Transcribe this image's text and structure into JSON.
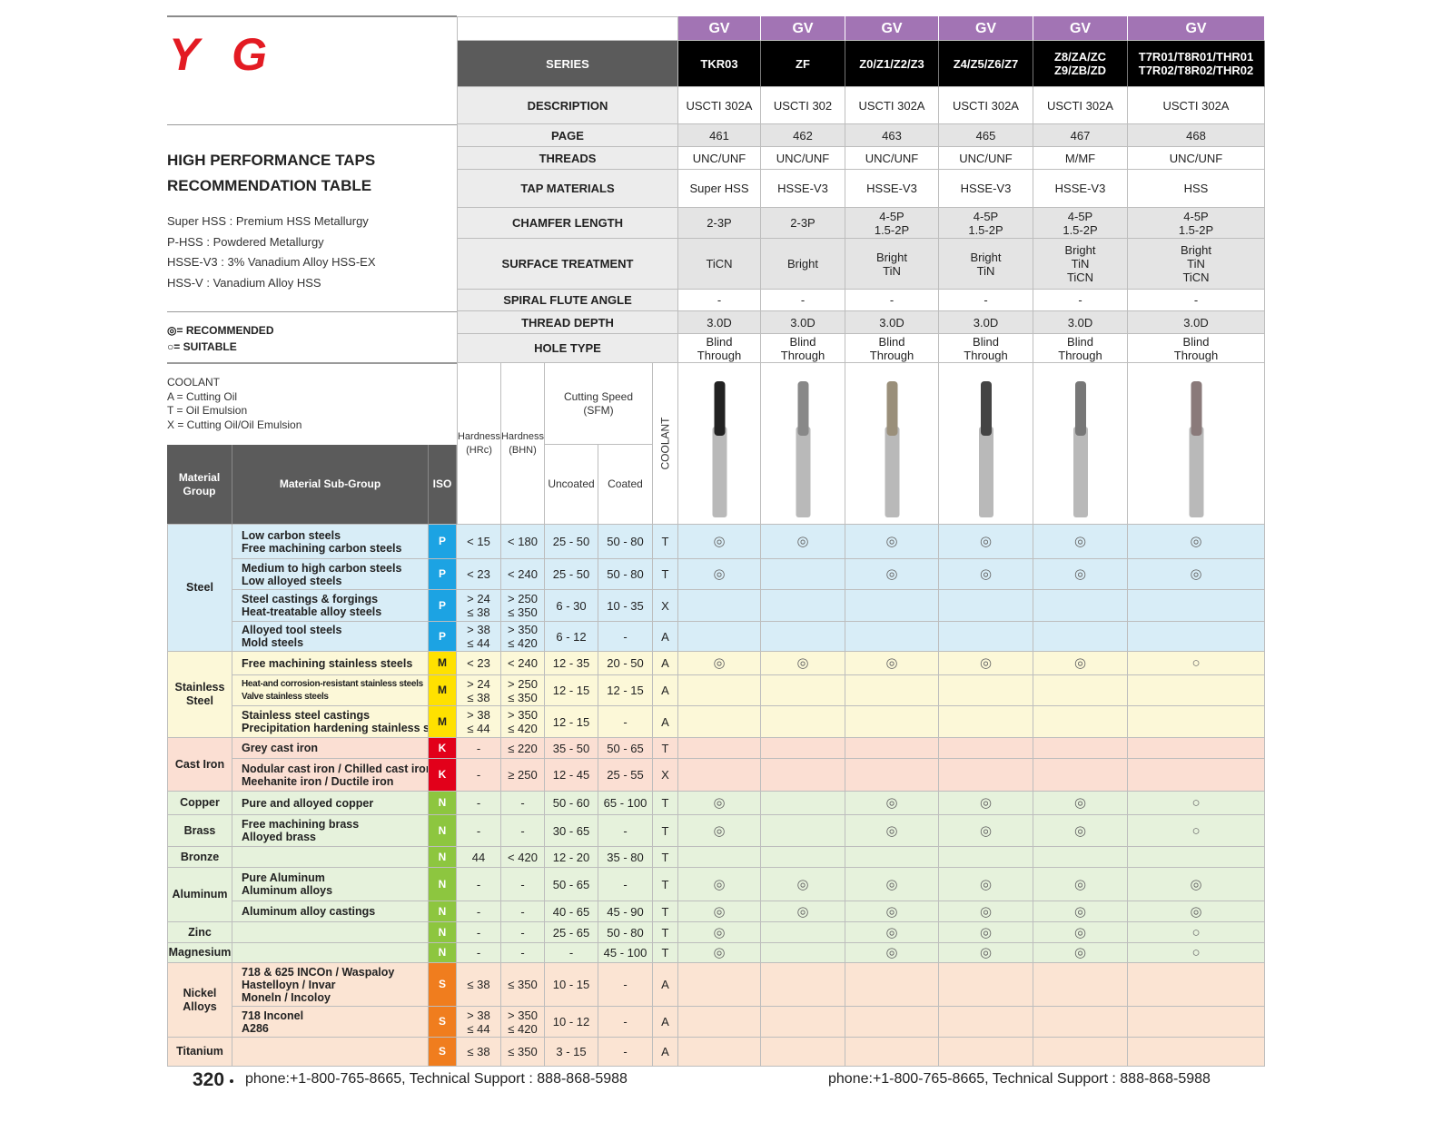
{
  "logo": "YG",
  "title": [
    "HIGH PERFORMANCE TAPS",
    "RECOMMENDATION TABLE"
  ],
  "definitions": [
    "Super HSS : Premium HSS Metallurgy",
    "P-HSS : Powdered Metallurgy",
    "HSSE-V3 : 3% Vanadium Alloy HSS-EX",
    "HSS-V : Vanadium Alloy HSS"
  ],
  "legend": [
    "◎= RECOMMENDED",
    "○= SUITABLE"
  ],
  "coolant": [
    "COOLANT",
    "A = Cutting Oil",
    "T = Oil Emulsion",
    "X = Cutting Oil/Oil Emulsion"
  ],
  "header": {
    "brand_row": [
      "GV",
      "GV",
      "GV",
      "GV",
      "GV",
      "GV"
    ],
    "rows": [
      {
        "label": "SERIES",
        "values": [
          "TKR03",
          "ZF",
          "Z0/Z1/Z2/Z3",
          "Z4/Z5/Z6/Z7",
          [
            "Z8/ZA/ZC",
            "Z9/ZB/ZD"
          ],
          [
            "T7R01/T8R01/THR01",
            "T7R02/T8R02/THR02"
          ]
        ]
      },
      {
        "label": "DESCRIPTION",
        "values": [
          "USCTI 302A",
          "USCTI 302",
          "USCTI 302A",
          "USCTI 302A",
          "USCTI 302A",
          "USCTI 302A"
        ]
      },
      {
        "label": "PAGE",
        "values": [
          "461",
          "462",
          "463",
          "465",
          "467",
          "468"
        ]
      },
      {
        "label": "THREADS",
        "values": [
          "UNC/UNF",
          "UNC/UNF",
          "UNC/UNF",
          "UNC/UNF",
          "M/MF",
          "UNC/UNF"
        ]
      },
      {
        "label": "TAP MATERIALS",
        "values": [
          "Super HSS",
          "HSSE-V3",
          "HSSE-V3",
          "HSSE-V3",
          "HSSE-V3",
          "HSS"
        ]
      },
      {
        "label": "CHAMFER LENGTH",
        "values": [
          "2-3P",
          "2-3P",
          [
            "4-5P",
            "1.5-2P"
          ],
          [
            "4-5P",
            "1.5-2P"
          ],
          [
            "4-5P",
            "1.5-2P"
          ],
          [
            "4-5P",
            "1.5-2P"
          ]
        ]
      },
      {
        "label": "SURFACE TREATMENT",
        "values": [
          "TiCN",
          "Bright",
          [
            "Bright",
            "TiN"
          ],
          [
            "Bright",
            "TiN"
          ],
          [
            "Bright",
            "TiN",
            "TiCN"
          ],
          [
            "Bright",
            "TiN",
            "TiCN"
          ]
        ]
      },
      {
        "label": "SPIRAL FLUTE ANGLE",
        "values": [
          "-",
          "-",
          "-",
          "-",
          "-",
          "-"
        ]
      },
      {
        "label": "THREAD DEPTH",
        "values": [
          "3.0D",
          "3.0D",
          "3.0D",
          "3.0D",
          "3.0D",
          "3.0D"
        ]
      },
      {
        "label": "HOLE TYPE",
        "values": [
          [
            "Blind",
            "Through"
          ],
          [
            "Blind",
            "Through"
          ],
          [
            "Blind",
            "Through"
          ],
          [
            "Blind",
            "Through"
          ],
          [
            "Blind",
            "Through"
          ],
          [
            "Blind",
            "Through"
          ]
        ]
      }
    ]
  },
  "column_headers": {
    "material_group": [
      "Material",
      "Group"
    ],
    "sub_group": "Material Sub-Group",
    "iso": "ISO",
    "hrc": [
      "Hardness",
      "(HRc)"
    ],
    "bhn": [
      "Hardness",
      "(BHN)"
    ],
    "cutting_speed": [
      "Cutting Speed",
      "(SFM)"
    ],
    "uncoated": "Uncoated",
    "coated": "Coated",
    "coolant": "COOLANT"
  },
  "groups": [
    {
      "name": [
        "Steel"
      ],
      "rows": [
        {
          "sub": [
            "Low carbon steels",
            "Free machining carbon steels"
          ],
          "iso": "P",
          "hrc": "< 15",
          "bhn": "< 180",
          "uncoated": "25 - 50",
          "coated": "50 - 80",
          "coolant": "T",
          "marks": [
            "◎",
            "◎",
            "◎",
            "◎",
            "◎",
            "◎"
          ]
        },
        {
          "sub": [
            "Medium to high carbon steels",
            "Low alloyed steels"
          ],
          "iso": "P",
          "hrc": "< 23",
          "bhn": "< 240",
          "uncoated": "25 - 50",
          "coated": "50 - 80",
          "coolant": "T",
          "marks": [
            "◎",
            null,
            "◎",
            "◎",
            "◎",
            "◎"
          ]
        },
        {
          "sub": [
            "Steel castings & forgings",
            "Heat-treatable alloy steels"
          ],
          "iso": "P",
          "hrc": [
            "> 24",
            "≤ 38"
          ],
          "bhn": [
            "> 250",
            "≤ 350"
          ],
          "uncoated": "6 - 30",
          "coated": "10 - 35",
          "coolant": "X",
          "marks": [
            null,
            null,
            null,
            null,
            null,
            null
          ]
        },
        {
          "sub": [
            "Alloyed tool steels",
            "Mold steels"
          ],
          "iso": "P",
          "hrc": [
            "> 38",
            "≤ 44"
          ],
          "bhn": [
            "> 350",
            "≤ 420"
          ],
          "uncoated": "6 - 12",
          "coated": "-",
          "coolant": "A",
          "marks": [
            null,
            null,
            null,
            null,
            null,
            null
          ]
        }
      ]
    },
    {
      "name": [
        "Stainless",
        "Steel"
      ],
      "rows": [
        {
          "sub": [
            "Free machining stainless steels"
          ],
          "iso": "M",
          "hrc": "< 23",
          "bhn": "< 240",
          "uncoated": "12 - 35",
          "coated": "20 - 50",
          "coolant": "A",
          "marks": [
            "◎",
            "◎",
            "◎",
            "◎",
            "◎",
            "○"
          ]
        },
        {
          "sub": [
            "Heat-and corrosion-resistant stainless steels",
            "Valve stainless steels"
          ],
          "iso": "M",
          "hrc": [
            "> 24",
            "≤ 38"
          ],
          "bhn": [
            "> 250",
            "≤ 350"
          ],
          "uncoated": "12 - 15",
          "coated": "12 - 15",
          "coolant": "A",
          "marks": [
            null,
            null,
            null,
            null,
            null,
            null
          ]
        },
        {
          "sub": [
            "Stainless steel castings",
            "Precipitation hardening stainless steels"
          ],
          "iso": "M",
          "hrc": [
            "> 38",
            "≤ 44"
          ],
          "bhn": [
            "> 350",
            "≤ 420"
          ],
          "uncoated": "12 - 15",
          "coated": "-",
          "coolant": "A",
          "marks": [
            null,
            null,
            null,
            null,
            null,
            null
          ]
        }
      ]
    },
    {
      "name": [
        "Cast Iron"
      ],
      "rows": [
        {
          "sub": [
            "Grey cast iron"
          ],
          "iso": "K",
          "hrc": "-",
          "bhn": "≤ 220",
          "uncoated": "35 - 50",
          "coated": "50 - 65",
          "coolant": "T",
          "marks": [
            null,
            null,
            null,
            null,
            null,
            null
          ]
        },
        {
          "sub": [
            "Nodular cast iron / Chilled cast iron",
            "Meehanite iron / Ductile iron"
          ],
          "iso": "K",
          "hrc": "-",
          "bhn": "≥ 250",
          "uncoated": "12 - 45",
          "coated": "25 - 55",
          "coolant": "X",
          "marks": [
            null,
            null,
            null,
            null,
            null,
            null
          ]
        }
      ]
    },
    {
      "name": [
        "Copper"
      ],
      "rows": [
        {
          "sub": [
            "Pure and alloyed copper"
          ],
          "iso": "N",
          "hrc": "-",
          "bhn": "-",
          "uncoated": "50 - 60",
          "coated": "65 - 100",
          "coolant": "T",
          "marks": [
            "◎",
            null,
            "◎",
            "◎",
            "◎",
            "○"
          ]
        }
      ]
    },
    {
      "name": [
        "Brass"
      ],
      "rows": [
        {
          "sub": [
            "Free machining brass",
            "Alloyed brass"
          ],
          "iso": "N",
          "hrc": "-",
          "bhn": "-",
          "uncoated": "30 - 65",
          "coated": "-",
          "coolant": "T",
          "marks": [
            "◎",
            null,
            "◎",
            "◎",
            "◎",
            "○"
          ]
        }
      ]
    },
    {
      "name": [
        "Bronze"
      ],
      "rows": [
        {
          "sub": null,
          "iso": "N",
          "hrc": "44",
          "bhn": "< 420",
          "uncoated": "12 - 20",
          "coated": "35 - 80",
          "coolant": "T",
          "marks": [
            null,
            null,
            null,
            null,
            null,
            null
          ]
        }
      ]
    },
    {
      "name": [
        "Aluminum"
      ],
      "rows": [
        {
          "sub": [
            "Pure Aluminum",
            "Aluminum alloys"
          ],
          "iso": "N",
          "hrc": "-",
          "bhn": "-",
          "uncoated": "50 - 65",
          "coated": "-",
          "coolant": "T",
          "marks": [
            "◎",
            "◎",
            "◎",
            "◎",
            "◎",
            "◎"
          ]
        },
        {
          "sub": [
            "Aluminum alloy castings"
          ],
          "iso": "N",
          "hrc": "-",
          "bhn": "-",
          "uncoated": "40 - 65",
          "coated": "45 - 90",
          "coolant": "T",
          "marks": [
            "◎",
            "◎",
            "◎",
            "◎",
            "◎",
            "◎"
          ]
        }
      ]
    },
    {
      "name": [
        "Zinc"
      ],
      "rows": [
        {
          "sub": null,
          "iso": "N",
          "hrc": "-",
          "bhn": "-",
          "uncoated": "25 - 65",
          "coated": "50 - 80",
          "coolant": "T",
          "marks": [
            "◎",
            null,
            "◎",
            "◎",
            "◎",
            "○"
          ]
        }
      ]
    },
    {
      "name": [
        "Magnesium"
      ],
      "rows": [
        {
          "sub": null,
          "iso": "N",
          "hrc": "-",
          "bhn": "-",
          "uncoated": "-",
          "coated": "45 - 100",
          "coolant": "T",
          "marks": [
            "◎",
            null,
            "◎",
            "◎",
            "◎",
            "○"
          ]
        }
      ]
    },
    {
      "name": [
        "Nickel",
        "Alloys"
      ],
      "rows": [
        {
          "sub": [
            "718 & 625 INCOn / Waspaloy",
            "Hastelloyn / Invar",
            "Moneln / Incoloy"
          ],
          "iso": "S",
          "hrc": "≤ 38",
          "bhn": "≤ 350",
          "uncoated": "10 - 15",
          "coated": "-",
          "coolant": "A",
          "marks": [
            null,
            null,
            null,
            null,
            null,
            null
          ]
        },
        {
          "sub": [
            "718 Inconel",
            "A286"
          ],
          "iso": "S",
          "hrc": [
            "> 38",
            "≤ 44"
          ],
          "bhn": [
            "> 350",
            "≤ 420"
          ],
          "uncoated": "10 - 12",
          "coated": "-",
          "coolant": "A",
          "marks": [
            null,
            null,
            null,
            null,
            null,
            null
          ]
        }
      ]
    },
    {
      "name": [
        "Titanium"
      ],
      "rows": [
        {
          "sub": null,
          "iso": "S",
          "hrc": "≤ 38",
          "bhn": "≤ 350",
          "uncoated": "3 - 15",
          "coated": "-",
          "coolant": "A",
          "marks": [
            null,
            null,
            null,
            null,
            null,
            null
          ]
        }
      ]
    }
  ],
  "footer": {
    "page": "320",
    "contact_left": "phone:+1-800-765-8665,  Technical Support : 888-868-5988",
    "contact_right": "phone:+1-800-765-8665,  Technical Support : 888-868-5988"
  }
}
